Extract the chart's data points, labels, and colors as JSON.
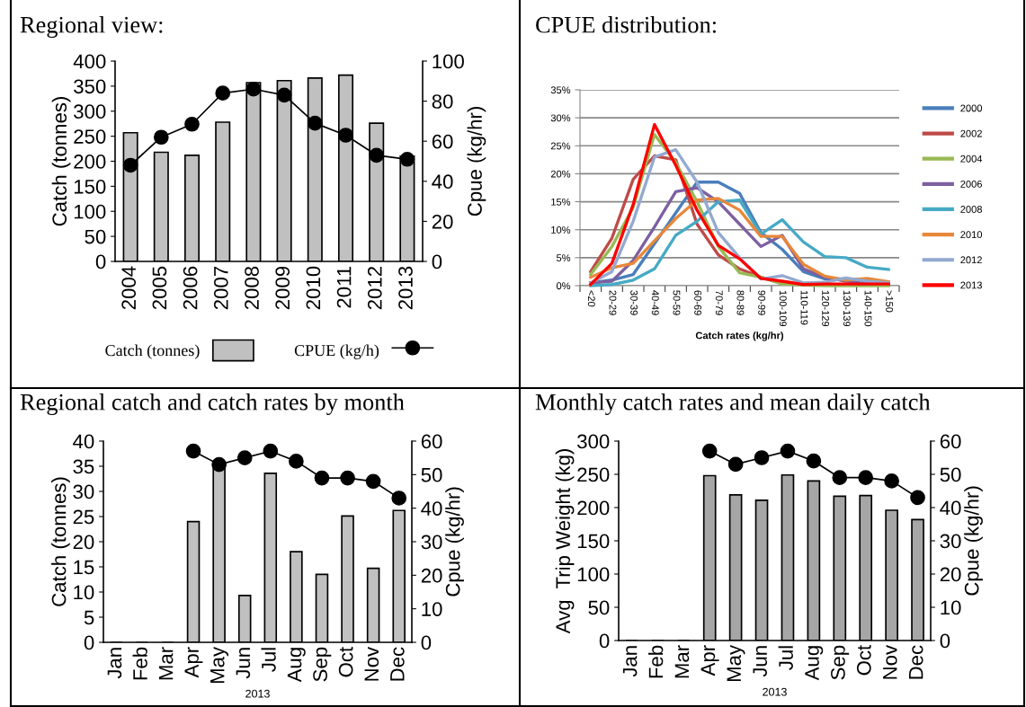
{
  "chart_data": [
    {
      "type": "bar",
      "title": "Regional view:",
      "categories": [
        "2004",
        "2005",
        "2006",
        "2007",
        "2008",
        "2009",
        "2010",
        "2011",
        "2012",
        "2013"
      ],
      "series": [
        {
          "name": "Catch (tonnes)",
          "type": "bar",
          "color": "#c0c0c0",
          "values": [
            257,
            218,
            212,
            278,
            357,
            361,
            366,
            372,
            276,
            210
          ]
        },
        {
          "name": "CPUE (kg/h)",
          "type": "line",
          "axis": "y2",
          "color": "#000000",
          "marker": "circle",
          "values": [
            48,
            62,
            68.5,
            84,
            86,
            83,
            69,
            63,
            53,
            51
          ]
        }
      ],
      "ylabel": "Catch (tonnes)",
      "y2label": "Cpue (kg/hr)",
      "ylim": [
        0,
        400
      ],
      "yticks": [
        0,
        50,
        100,
        150,
        200,
        250,
        300,
        350,
        400
      ],
      "y2lim": [
        0,
        100
      ],
      "y2ticks": [
        0,
        20,
        40,
        60,
        80,
        100
      ],
      "legend": "bottom",
      "grid": false
    },
    {
      "type": "line",
      "title": "CPUE distribution:",
      "categories": [
        "<20",
        "20-29",
        "30-39",
        "40-49",
        "50-59",
        "60-69",
        "70-79",
        "80-89",
        "90-99",
        "100-109",
        "110-119",
        "120-129",
        "130-139",
        "140-150",
        ">150"
      ],
      "series": [
        {
          "name": "2000",
          "color": "#4a7ebb",
          "values": [
            0.5,
            1,
            2,
            7.5,
            13,
            18.5,
            18.5,
            16.5,
            9.5,
            6.5,
            2.5,
            1.2,
            1.2,
            1,
            0.5
          ]
        },
        {
          "name": "2002",
          "color": "#be4b48",
          "values": [
            2.5,
            8.5,
            19,
            23.2,
            22.5,
            11,
            5.5,
            3,
            1.5,
            0.5,
            0.2,
            0.1,
            0.1,
            0.1,
            0.1
          ]
        },
        {
          "name": "2004",
          "color": "#98b954",
          "values": [
            2,
            7,
            14,
            27,
            22,
            15,
            7,
            2.3,
            1.5,
            0.3,
            0.1,
            0,
            0,
            0,
            0
          ]
        },
        {
          "name": "2006",
          "color": "#7d60a0",
          "values": [
            0.5,
            0.8,
            4.5,
            10.5,
            16.8,
            17.5,
            15,
            11,
            7,
            9,
            3,
            1.5,
            0.8,
            0.5,
            0.5
          ]
        },
        {
          "name": "2008",
          "color": "#46aac5",
          "values": [
            0,
            0.2,
            1,
            3,
            9,
            11.5,
            15,
            15.3,
            9.2,
            11.8,
            7.8,
            5.2,
            5,
            3.3,
            2.9
          ]
        },
        {
          "name": "2010",
          "color": "#e8873a",
          "values": [
            1.5,
            3.2,
            4,
            8,
            12,
            15.3,
            15.6,
            13.5,
            8.8,
            8.8,
            3.8,
            1.7,
            1,
            1.3,
            0.7
          ]
        },
        {
          "name": "2012",
          "color": "#93a9d0",
          "values": [
            0.5,
            2.5,
            11.5,
            23,
            24.3,
            18.5,
            9.5,
            5,
            1.2,
            1.8,
            0.5,
            0.6,
            1.4,
            0.8,
            0.5
          ]
        },
        {
          "name": "2013",
          "color": "#ff0000",
          "values": [
            0.2,
            4,
            14.5,
            28.8,
            21.5,
            13.5,
            7.2,
            4.8,
            1.3,
            0.8,
            0.2,
            0.3,
            0.3,
            0.3,
            0.3
          ]
        }
      ],
      "xlabel": "Catch rates (kg/hr)",
      "ylim": [
        0,
        35
      ],
      "yticks": [
        {
          "value": 0,
          "label": "0%"
        },
        {
          "value": 5,
          "label": "5%"
        },
        {
          "value": 10,
          "label": "10%"
        },
        {
          "value": 15,
          "label": "15%"
        },
        {
          "value": 20,
          "label": "20%"
        },
        {
          "value": 25,
          "label": "25%"
        },
        {
          "value": 30,
          "label": "30%"
        },
        {
          "value": 35,
          "label": "35%"
        }
      ],
      "grid": "y",
      "legend": "right"
    },
    {
      "type": "bar",
      "title": "Regional catch and catch rates by month",
      "categories": [
        "Jan",
        "Feb",
        "Mar",
        "Apr",
        "May",
        "Jun",
        "Jul",
        "Aug",
        "Sep",
        "Oct",
        "Nov",
        "Dec"
      ],
      "series": [
        {
          "type": "bar",
          "color": "#c0c0c0",
          "values": [
            null,
            null,
            null,
            24,
            34.5,
            9.3,
            33.6,
            18,
            13.5,
            25.1,
            14.7,
            26.2
          ]
        },
        {
          "type": "line",
          "axis": "y2",
          "color": "#000000",
          "marker": "circle",
          "values": [
            null,
            null,
            null,
            57,
            53,
            55,
            57,
            54,
            49,
            49,
            48,
            43
          ]
        }
      ],
      "xlabel": "2013",
      "ylabel": "Catch (tonnes)",
      "y2label": "Cpue (kg/hr)",
      "ylim": [
        0,
        40
      ],
      "yticks": [
        0,
        5,
        10,
        15,
        20,
        25,
        30,
        35,
        40
      ],
      "y2lim": [
        0,
        60
      ],
      "y2ticks": [
        0,
        10,
        20,
        30,
        40,
        50,
        60
      ],
      "grid": false
    },
    {
      "type": "bar",
      "title": "Monthly catch rates and mean daily catch",
      "categories": [
        "Jan",
        "Feb",
        "Mar",
        "Apr",
        "May",
        "Jun",
        "Jul",
        "Aug",
        "Sep",
        "Oct",
        "Nov",
        "Dec"
      ],
      "series": [
        {
          "type": "bar",
          "color": "#a6a6a6",
          "values": [
            null,
            null,
            null,
            248,
            219,
            211,
            249,
            240,
            217,
            218,
            196,
            182
          ]
        },
        {
          "type": "line",
          "axis": "y2",
          "color": "#000000",
          "marker": "circle",
          "values": [
            null,
            null,
            null,
            57,
            53,
            55,
            57,
            54,
            49,
            49,
            48,
            43
          ]
        }
      ],
      "xlabel": "2013",
      "ylabel": "Avg  Trip Weight (kg)",
      "y2label": "Cpue (kg/hr)",
      "ylim": [
        0,
        300
      ],
      "yticks": [
        0,
        50,
        100,
        150,
        200,
        250,
        300
      ],
      "y2lim": [
        0,
        60
      ],
      "y2ticks": [
        0,
        10,
        20,
        30,
        40,
        50,
        60
      ],
      "grid": false
    }
  ]
}
